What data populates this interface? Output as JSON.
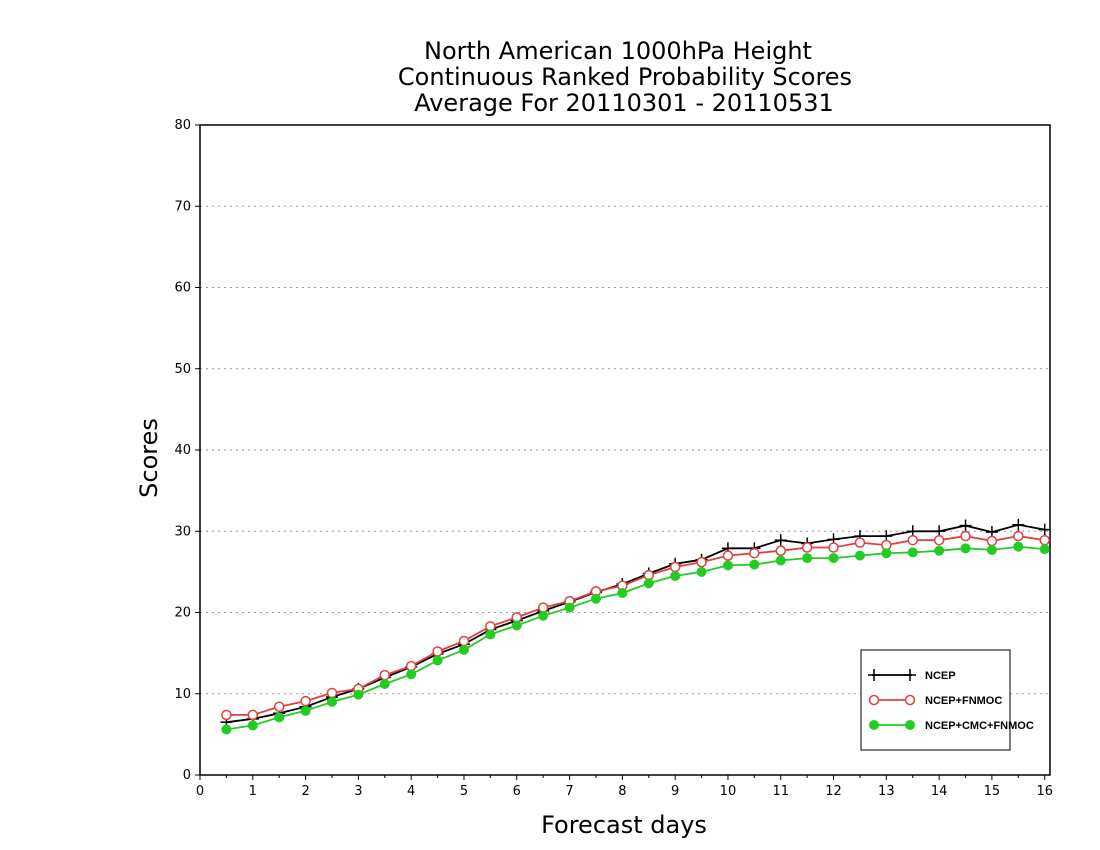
{
  "chart_data": {
    "type": "line",
    "title": [
      "North American 1000hPa Height",
      "Continuous Ranked Probability Scores",
      "Average For 20110301 - 20110531"
    ],
    "xlabel": "Forecast days",
    "ylabel": "Scores",
    "xlim": [
      0,
      16.1
    ],
    "ylim": [
      0,
      80
    ],
    "xticks": [
      0,
      1,
      2,
      3,
      4,
      5,
      6,
      7,
      8,
      9,
      10,
      11,
      12,
      13,
      14,
      15,
      16
    ],
    "yticks": [
      0,
      10,
      20,
      30,
      40,
      50,
      60,
      70,
      80
    ],
    "grid": "horizontal-dotted",
    "legend_position": "bottom-right",
    "x": [
      0.5,
      1.0,
      1.5,
      2.0,
      2.5,
      3.0,
      3.5,
      4.0,
      4.5,
      5.0,
      5.5,
      6.0,
      6.5,
      7.0,
      7.5,
      8.0,
      8.5,
      9.0,
      9.5,
      10.0,
      10.5,
      11.0,
      11.5,
      12.0,
      12.5,
      13.0,
      13.5,
      14.0,
      14.5,
      15.0,
      15.5,
      16.0
    ],
    "series": [
      {
        "name": "NCEP",
        "color": "#000000",
        "marker": "plus",
        "values": [
          6.5,
          6.9,
          7.6,
          8.4,
          9.6,
          10.6,
          12.0,
          13.3,
          14.9,
          16.1,
          17.9,
          19.0,
          20.2,
          21.3,
          22.5,
          23.5,
          24.8,
          26.0,
          26.5,
          27.9,
          27.9,
          28.9,
          28.5,
          29.0,
          29.4,
          29.4,
          30.0,
          30.0,
          30.7,
          29.9,
          30.8,
          30.2
        ]
      },
      {
        "name": "NCEP+FNMOC",
        "color": "#e04040",
        "marker": "open-circle",
        "values": [
          7.4,
          7.4,
          8.4,
          9.1,
          10.1,
          10.6,
          12.3,
          13.4,
          15.2,
          16.5,
          18.3,
          19.4,
          20.6,
          21.4,
          22.6,
          23.3,
          24.6,
          25.6,
          26.2,
          27.0,
          27.3,
          27.6,
          28.0,
          28.0,
          28.6,
          28.3,
          28.9,
          28.9,
          29.4,
          28.8,
          29.4,
          28.9
        ]
      },
      {
        "name": "NCEP+CMC+FNMOC",
        "color": "#22cc22",
        "marker": "filled-circle",
        "values": [
          5.6,
          6.1,
          7.1,
          7.9,
          9.0,
          9.9,
          11.2,
          12.4,
          14.1,
          15.4,
          17.3,
          18.4,
          19.6,
          20.6,
          21.7,
          22.4,
          23.6,
          24.5,
          25.0,
          25.8,
          25.9,
          26.4,
          26.7,
          26.7,
          27.0,
          27.3,
          27.4,
          27.6,
          27.9,
          27.7,
          28.1,
          27.8
        ]
      }
    ]
  }
}
